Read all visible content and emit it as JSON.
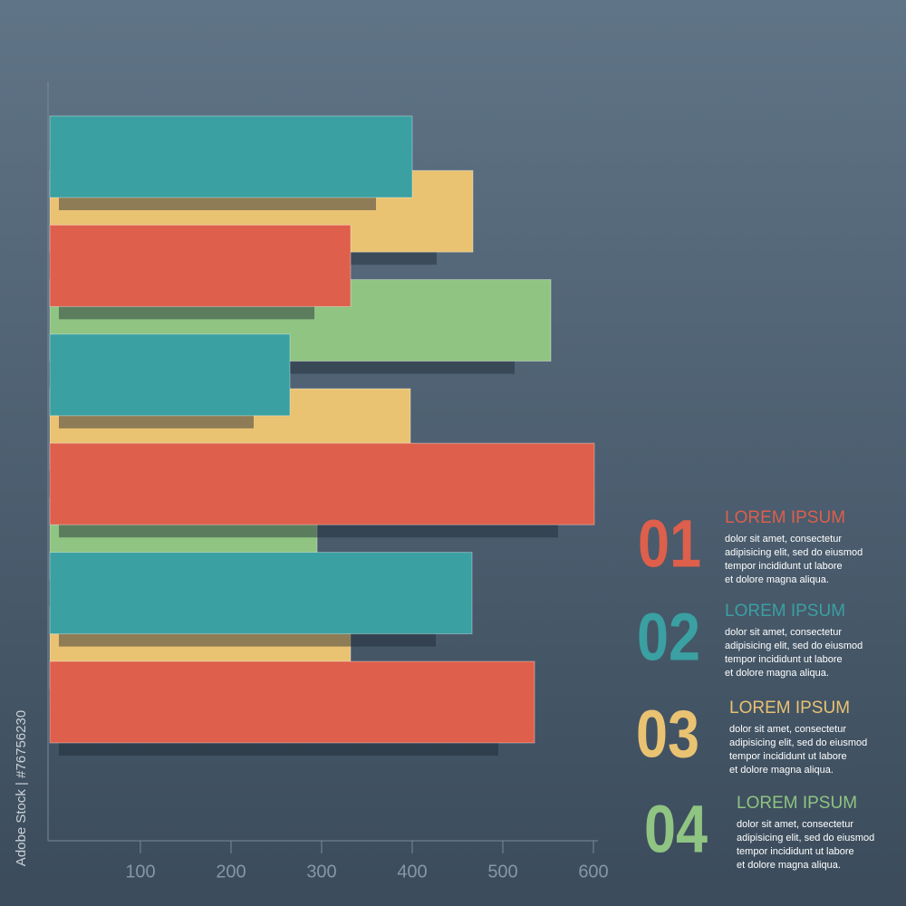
{
  "chart_data": {
    "type": "bar",
    "orientation": "horizontal",
    "categories": [
      null,
      null,
      null,
      null,
      null,
      null,
      null,
      null,
      null,
      null,
      null
    ],
    "values": [
      400,
      467,
      332,
      553,
      265,
      398,
      601,
      295,
      466,
      332,
      535
    ],
    "colors": [
      "#3aa0a2",
      "#e9c272",
      "#de5f4b",
      "#8fc482",
      "#3aa0a2",
      "#e9c272",
      "#de5f4b",
      "#8fc482",
      "#3aa0a2",
      "#e9c272",
      "#de5f4b"
    ],
    "xlim": [
      0,
      600
    ],
    "xticks": [
      100,
      200,
      300,
      400,
      500,
      600
    ]
  },
  "legend": [
    {
      "number": "01",
      "color": "#de5f4b",
      "title": "LOREM IPSUM",
      "lines": [
        "dolor sit amet, consectetur",
        "adipisicing elit, sed do eiusmod",
        "tempor incididunt ut labore",
        "et dolore magna aliqua."
      ]
    },
    {
      "number": "02",
      "color": "#3aa0a2",
      "title": "LOREM IPSUM",
      "lines": [
        "dolor sit amet, consectetur",
        "adipisicing elit, sed do eiusmod",
        "tempor incididunt ut labore",
        "et dolore magna aliqua."
      ]
    },
    {
      "number": "03",
      "color": "#e9c272",
      "title": "LOREM IPSUM",
      "lines": [
        "dolor sit amet, consectetur",
        "adipisicing elit, sed do eiusmod",
        "tempor incididunt ut labore",
        "et dolore magna aliqua."
      ]
    },
    {
      "number": "04",
      "color": "#8fc482",
      "title": "LOREM IPSUM",
      "lines": [
        "dolor sit amet, consectetur",
        "adipisicing elit, sed do eiusmod",
        "tempor incididunt ut labore",
        "et dolore magna aliqua."
      ]
    }
  ],
  "stock_id": "Adobe Stock | #76756230"
}
